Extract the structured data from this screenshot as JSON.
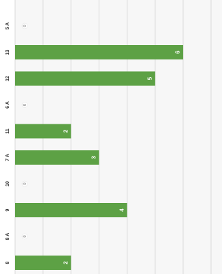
{
  "chart_data": {
    "type": "bar",
    "orientation": "horizontal",
    "categories": [
      "5 A",
      "13",
      "12",
      "6 A",
      "11",
      "7 A",
      "10",
      "9",
      "8 A",
      "8"
    ],
    "values": [
      0,
      6,
      5,
      0,
      2,
      3,
      0,
      4,
      0,
      2
    ],
    "value_labels": [
      "0",
      "6",
      "5",
      "0",
      "2",
      "3",
      "0",
      "4",
      "0",
      "2"
    ],
    "xlim": [
      0,
      7
    ],
    "grid": true,
    "legend": "none",
    "title": "",
    "xlabel": "",
    "ylabel": "",
    "colors": {
      "bar": "#5da145",
      "grid": "#d9d9d9",
      "zero_marker": "#ffffff",
      "label": "#333333"
    }
  }
}
